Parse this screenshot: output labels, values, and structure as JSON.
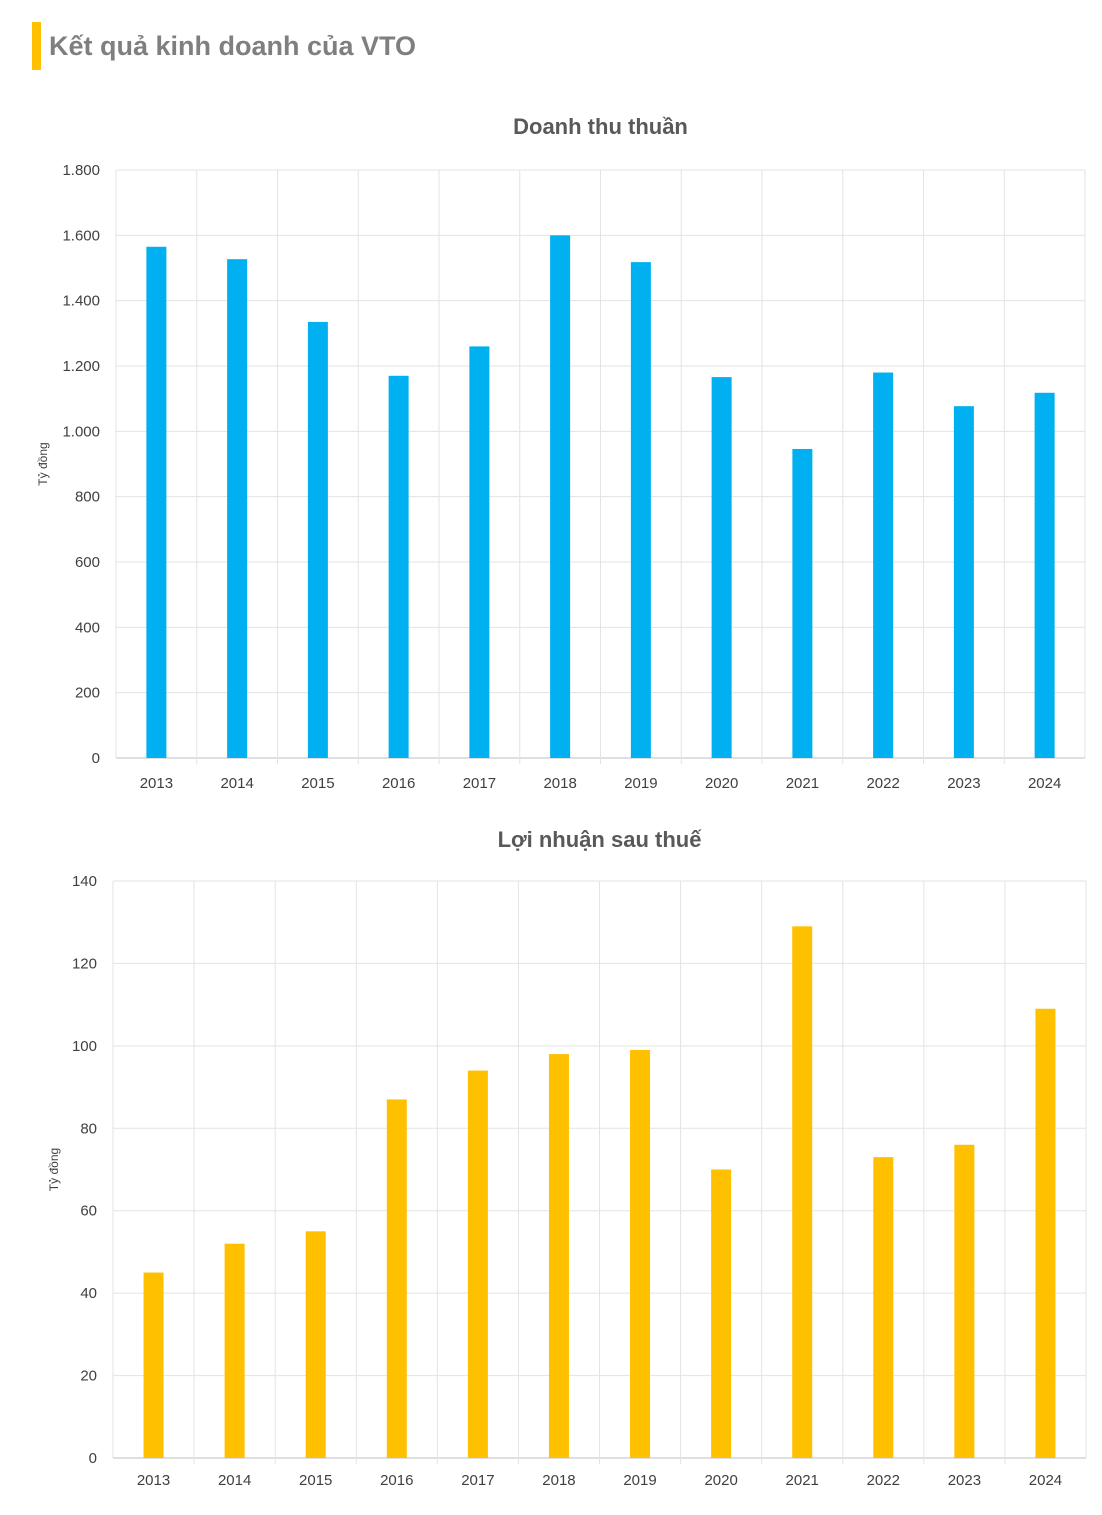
{
  "header": {
    "title": "Kết quả kinh doanh của VTO",
    "accent_color": "#FFC000"
  },
  "chart_data": [
    {
      "type": "bar",
      "title": "Doanh thu thuần",
      "ylabel": "Tỷ đồng",
      "xlabel": "",
      "categories": [
        "2013",
        "2014",
        "2015",
        "2016",
        "2017",
        "2018",
        "2019",
        "2020",
        "2021",
        "2022",
        "2023",
        "2024"
      ],
      "values": [
        1565,
        1527,
        1335,
        1170,
        1260,
        1600,
        1518,
        1166,
        946,
        1180,
        1077,
        1118
      ],
      "ylim": [
        0,
        1800
      ],
      "yticks": [
        0,
        200,
        400,
        600,
        800,
        1000,
        1200,
        1400,
        1600,
        1800
      ],
      "ytick_labels": [
        "0",
        "200",
        "400",
        "600",
        "800",
        "1.000",
        "1.200",
        "1.400",
        "1.600",
        "1.800"
      ],
      "color": "#00B0F0",
      "grid": true
    },
    {
      "type": "bar",
      "title": "Lợi nhuận sau thuế",
      "ylabel": "Tỷ đồng",
      "xlabel": "",
      "categories": [
        "2013",
        "2014",
        "2015",
        "2016",
        "2017",
        "2018",
        "2019",
        "2020",
        "2021",
        "2022",
        "2023",
        "2024"
      ],
      "values": [
        45,
        52,
        55,
        87,
        94,
        98,
        99,
        70,
        129,
        73,
        76,
        109
      ],
      "ylim": [
        0,
        140
      ],
      "yticks": [
        0,
        20,
        40,
        60,
        80,
        100,
        120,
        140
      ],
      "ytick_labels": [
        "0",
        "20",
        "40",
        "60",
        "80",
        "100",
        "120",
        "140"
      ],
      "color": "#FFC000",
      "grid": true
    }
  ]
}
